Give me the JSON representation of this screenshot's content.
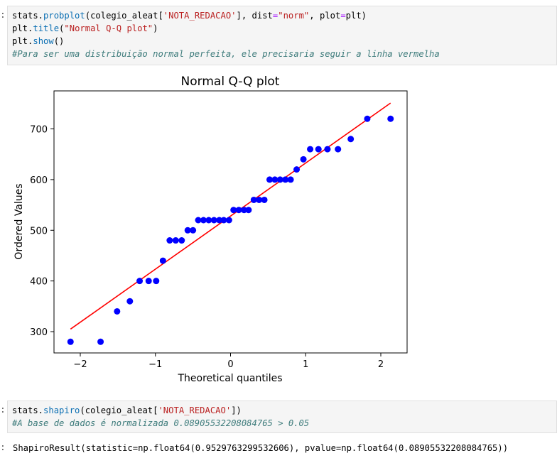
{
  "cell1": {
    "prompt": ":",
    "line1": {
      "a": "stats.",
      "fn": "probplot",
      "b": "(colegio_aleat[",
      "s1": "'NOTA_REDACAO'",
      "c": "], dist",
      "eq1": "=",
      "s2": "\"norm\"",
      "d": ", plot",
      "eq2": "=",
      "e": "plt)"
    },
    "line2": {
      "a": "plt.",
      "fn": "title",
      "b": "(",
      "s": "\"Normal Q-Q plot\"",
      "c": ")"
    },
    "line3": {
      "a": "plt.",
      "fn": "show",
      "b": "()"
    },
    "line4": {
      "comment": "#Para ser uma distribuição normal perfeita, ele precisaria seguir a linha vermelha"
    }
  },
  "cell2": {
    "prompt": ":",
    "line1": {
      "a": "stats.",
      "fn": "shapiro",
      "b": "(colegio_aleat[",
      "s": "'NOTA_REDACAO'",
      "c": "])"
    },
    "line2": {
      "comment": "#A base de dados é normalizada 0.08905532208084765 > 0.05"
    }
  },
  "output2": {
    "prompt": ":",
    "text": "ShapiroResult(statistic=np.float64(0.9529763299532606), pvalue=np.float64(0.08905532208084765))"
  },
  "chart_data": {
    "type": "scatter",
    "title": "Normal Q-Q plot",
    "xlabel": "Theoretical quantiles",
    "ylabel": "Ordered Values",
    "xlim": [
      -2.35,
      2.35
    ],
    "ylim": [
      258,
      775
    ],
    "x_ticks": [
      -2,
      -1,
      0,
      1,
      2
    ],
    "x_tick_labels": [
      "−2",
      "−1",
      "0",
      "1",
      "2"
    ],
    "y_ticks": [
      300,
      400,
      500,
      600,
      700
    ],
    "y_tick_labels": [
      "300",
      "400",
      "500",
      "600",
      "700"
    ],
    "grid": false,
    "point_color": "#0000ff",
    "line_color": "#ff0000",
    "fit_line": {
      "x": [
        -2.13,
        2.13
      ],
      "y": [
        305,
        751
      ]
    },
    "points": {
      "x": [
        -2.13,
        -1.73,
        -1.51,
        -1.34,
        -1.21,
        -1.09,
        -0.99,
        -0.9,
        -0.81,
        -0.73,
        -0.65,
        -0.57,
        -0.5,
        -0.43,
        -0.36,
        -0.29,
        -0.22,
        -0.15,
        -0.09,
        -0.02,
        0.04,
        0.11,
        0.18,
        0.24,
        0.31,
        0.38,
        0.45,
        0.52,
        0.59,
        0.66,
        0.73,
        0.8,
        0.88,
        0.97,
        1.06,
        1.17,
        1.29,
        1.43,
        1.6,
        1.82,
        2.13
      ],
      "y": [
        280,
        280,
        340,
        360,
        400,
        400,
        400,
        440,
        480,
        480,
        480,
        500,
        500,
        520,
        520,
        520,
        520,
        520,
        520,
        520,
        540,
        540,
        540,
        540,
        560,
        560,
        560,
        600,
        600,
        600,
        600,
        600,
        620,
        640,
        660,
        660,
        660,
        660,
        680,
        720,
        720
      ]
    }
  }
}
